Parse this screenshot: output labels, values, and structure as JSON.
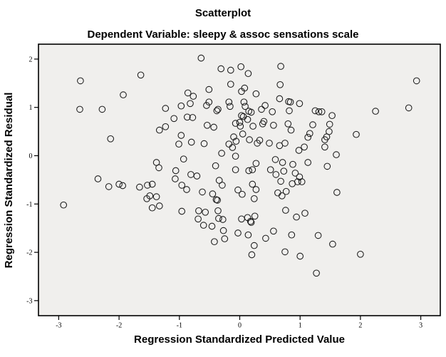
{
  "chart": {
    "title": "Scatterplot",
    "subtitle": "Dependent Variable: sleepy & assoc sensations scale"
  },
  "chart_data": {
    "type": "scatter",
    "title": "Scatterplot",
    "subtitle": "Dependent Variable: sleepy & assoc sensations scale",
    "xlabel": "Regression Standardized Predicted Value",
    "ylabel": "Regression Standardized Residual",
    "xlim": [
      -3.33,
      3.32
    ],
    "ylim": [
      -3.31,
      2.3
    ],
    "x_ticks": [
      -3,
      -2,
      -1,
      0,
      1,
      2,
      3
    ],
    "y_ticks": [
      2,
      1,
      0,
      -1,
      -2,
      -3
    ],
    "grid": false,
    "legend": null,
    "marker": "open-circle",
    "colors": {
      "plot_bg": "#F0EFED",
      "frame": "#000000",
      "marker_stroke": "#1A1A1A",
      "text": "#000000",
      "page_bg": "#FFFFFF"
    },
    "points": [
      [
        -2.64,
        1.55
      ],
      [
        -1.64,
        1.67
      ],
      [
        -1.93,
        1.26
      ],
      [
        -2.65,
        0.96
      ],
      [
        -2.28,
        0.96
      ],
      [
        -2.14,
        0.35
      ],
      [
        -2.35,
        -0.48
      ],
      [
        -0.64,
        2.02
      ],
      [
        -0.31,
        1.8
      ],
      [
        -0.15,
        1.77
      ],
      [
        0.02,
        1.84
      ],
      [
        0.14,
        1.7
      ],
      [
        -0.15,
        1.48
      ],
      [
        -0.51,
        1.37
      ],
      [
        0.08,
        1.4
      ],
      [
        0.03,
        1.33
      ],
      [
        0.27,
        1.28
      ],
      [
        -0.86,
        1.3
      ],
      [
        -0.77,
        1.23
      ],
      [
        -0.82,
        1.08
      ],
      [
        -0.97,
        1.03
      ],
      [
        -1.23,
        0.98
      ],
      [
        -0.51,
        1.11
      ],
      [
        -0.55,
        1.04
      ],
      [
        -0.18,
        1.11
      ],
      [
        -0.16,
        1.02
      ],
      [
        0.07,
        1.11
      ],
      [
        0.09,
        1.02
      ],
      [
        -0.36,
        0.96
      ],
      [
        -0.38,
        0.93
      ],
      [
        0.36,
        0.96
      ],
      [
        0.42,
        1.04
      ],
      [
        -1.09,
        0.77
      ],
      [
        -0.87,
        0.8
      ],
      [
        -0.78,
        0.79
      ],
      [
        0.03,
        0.83
      ],
      [
        0.06,
        0.81
      ],
      [
        0.15,
        0.92
      ],
      [
        0.19,
        0.9
      ],
      [
        0.13,
        0.75
      ],
      [
        0.4,
        0.71
      ],
      [
        -1.33,
        0.53
      ],
      [
        -1.23,
        0.6
      ],
      [
        -0.54,
        0.63
      ],
      [
        -0.43,
        0.59
      ],
      [
        -0.07,
        0.67
      ],
      [
        0.0,
        0.69
      ],
      [
        0.01,
        0.61
      ],
      [
        0.22,
        0.61
      ],
      [
        0.38,
        0.66
      ],
      [
        -0.97,
        0.42
      ],
      [
        -1.01,
        0.24
      ],
      [
        -0.8,
        0.28
      ],
      [
        -0.59,
        0.25
      ],
      [
        -0.1,
        0.39
      ],
      [
        0.05,
        0.45
      ],
      [
        0.16,
        0.33
      ],
      [
        -0.06,
        0.3
      ],
      [
        -0.18,
        0.24
      ],
      [
        -0.12,
        0.17
      ],
      [
        0.29,
        0.26
      ],
      [
        0.33,
        0.32
      ],
      [
        -0.3,
        0.05
      ],
      [
        -0.93,
        -0.07
      ],
      [
        -0.07,
        -0.01
      ],
      [
        -1.38,
        -0.14
      ],
      [
        -1.34,
        -0.25
      ],
      [
        -0.4,
        -0.21
      ],
      [
        0.27,
        -0.16
      ],
      [
        -0.07,
        -0.29
      ],
      [
        -1.06,
        -0.31
      ],
      [
        0.15,
        -0.31
      ],
      [
        0.21,
        -0.29
      ],
      [
        -0.81,
        -0.39
      ],
      [
        -0.71,
        -0.42
      ],
      [
        -0.34,
        -0.51
      ],
      [
        -1.07,
        -0.48
      ],
      [
        0.68,
        1.85
      ],
      [
        0.67,
        1.47
      ],
      [
        0.66,
        1.18
      ],
      [
        0.81,
        1.12
      ],
      [
        0.84,
        1.11
      ],
      [
        0.99,
        1.08
      ],
      [
        0.54,
        0.91
      ],
      [
        0.82,
        0.93
      ],
      [
        1.25,
        0.93
      ],
      [
        1.31,
        0.91
      ],
      [
        1.36,
        0.91
      ],
      [
        1.53,
        0.83
      ],
      [
        0.56,
        0.63
      ],
      [
        0.8,
        0.66
      ],
      [
        0.85,
        0.53
      ],
      [
        1.21,
        0.64
      ],
      [
        1.49,
        0.65
      ],
      [
        1.48,
        0.5
      ],
      [
        1.16,
        0.46
      ],
      [
        1.13,
        0.38
      ],
      [
        1.44,
        0.39
      ],
      [
        1.41,
        0.33
      ],
      [
        1.93,
        0.44
      ],
      [
        0.49,
        0.26
      ],
      [
        0.66,
        0.21
      ],
      [
        0.75,
        0.26
      ],
      [
        0.98,
        0.11
      ],
      [
        1.07,
        0.18
      ],
      [
        1.41,
        0.18
      ],
      [
        1.6,
        0.02
      ],
      [
        0.59,
        -0.08
      ],
      [
        0.71,
        -0.14
      ],
      [
        0.88,
        -0.18
      ],
      [
        1.13,
        -0.14
      ],
      [
        1.45,
        -0.22
      ],
      [
        0.51,
        -0.29
      ],
      [
        0.6,
        -0.39
      ],
      [
        0.73,
        -0.32
      ],
      [
        0.92,
        -0.36
      ],
      [
        0.99,
        -0.44
      ],
      [
        0.68,
        -0.53
      ],
      [
        0.96,
        -0.54
      ],
      [
        1.03,
        -0.54
      ],
      [
        0.87,
        -0.58
      ],
      [
        2.93,
        1.55
      ],
      [
        2.8,
        0.99
      ],
      [
        2.25,
        0.92
      ],
      [
        -2.92,
        -1.02
      ],
      [
        -2.17,
        -0.64
      ],
      [
        -2.0,
        -0.59
      ],
      [
        -1.94,
        -0.62
      ],
      [
        -1.66,
        -0.65
      ],
      [
        -1.53,
        -0.61
      ],
      [
        -1.45,
        -0.59
      ],
      [
        -1.54,
        -0.89
      ],
      [
        -1.49,
        -0.83
      ],
      [
        -1.45,
        -1.08
      ],
      [
        -0.96,
        -0.61
      ],
      [
        -0.88,
        -0.7
      ],
      [
        -0.62,
        -0.75
      ],
      [
        -0.45,
        -0.79
      ],
      [
        -0.29,
        -0.61
      ],
      [
        -0.39,
        -0.91
      ],
      [
        -0.37,
        -0.92
      ],
      [
        -0.03,
        -0.71
      ],
      [
        0.04,
        -0.8
      ],
      [
        0.21,
        -0.59
      ],
      [
        0.27,
        -0.7
      ],
      [
        0.24,
        -0.89
      ],
      [
        -1.38,
        -0.85
      ],
      [
        -1.33,
        -1.04
      ],
      [
        -0.96,
        -1.15
      ],
      [
        -0.68,
        -1.14
      ],
      [
        -0.57,
        -1.17
      ],
      [
        -0.36,
        -1.14
      ],
      [
        -0.69,
        -1.31
      ],
      [
        -0.6,
        -1.44
      ],
      [
        -0.46,
        -1.46
      ],
      [
        -0.35,
        -1.3
      ],
      [
        -0.28,
        -1.32
      ],
      [
        -0.27,
        -1.55
      ],
      [
        -0.42,
        -1.78
      ],
      [
        -0.25,
        -1.72
      ],
      [
        -0.03,
        -1.6
      ],
      [
        0.03,
        -1.31
      ],
      [
        0.13,
        -1.28
      ],
      [
        0.18,
        -1.36
      ],
      [
        0.19,
        -1.38
      ],
      [
        0.25,
        -1.25
      ],
      [
        0.14,
        -1.64
      ],
      [
        0.24,
        -1.86
      ],
      [
        0.2,
        -2.05
      ],
      [
        1.61,
        -0.76
      ],
      [
        0.63,
        -0.77
      ],
      [
        0.7,
        -0.83
      ],
      [
        0.77,
        -0.74
      ],
      [
        0.76,
        -1.13
      ],
      [
        0.94,
        -1.27
      ],
      [
        1.08,
        -1.19
      ],
      [
        0.56,
        -1.56
      ],
      [
        0.43,
        -1.71
      ],
      [
        0.86,
        -1.64
      ],
      [
        1.3,
        -1.65
      ],
      [
        1.54,
        -1.83
      ],
      [
        0.75,
        -1.99
      ],
      [
        1.0,
        -2.08
      ],
      [
        2.0,
        -2.04
      ],
      [
        1.27,
        -2.43
      ]
    ]
  }
}
